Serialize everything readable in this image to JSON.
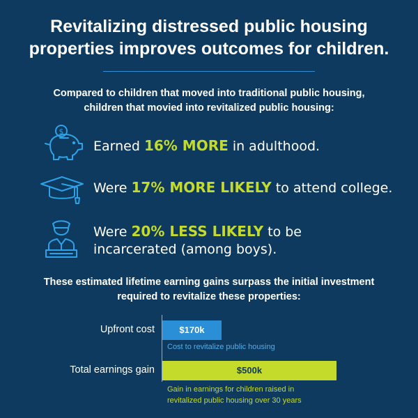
{
  "title_line1": "Revitalizing distressed public housing",
  "title_line2": "properties improves outcomes for children.",
  "intro_line1": "Compared to children that moved into traditional public housing,",
  "intro_line2": "children that movied into revitalized public housing:",
  "outcomes": [
    {
      "icon": "piggy-bank-icon",
      "pre": "Earned ",
      "highlight": "16% MORE",
      "post": " in adulthood."
    },
    {
      "icon": "graduation-cap-icon",
      "pre": "Were ",
      "highlight": "17% MORE LIKELY",
      "post": " to attend college."
    },
    {
      "icon": "police-officer-icon",
      "pre": "Were ",
      "highlight": "20% LESS LIKELY",
      "post": " to be",
      "line2": "incarcerated (among boys)."
    }
  ],
  "summary_line1": "These estimated lifetime earning gains surpass the initial investment",
  "summary_line2": "required to revitalize these properties:",
  "colors": {
    "background": "#0f3a5f",
    "accent_green": "#c5db2b",
    "accent_blue": "#2a8fd6"
  },
  "chart_data": {
    "type": "bar",
    "orientation": "horizontal",
    "categories": [
      "Upfront cost",
      "Total earnings gain"
    ],
    "values": [
      170,
      500
    ],
    "value_labels": [
      "$170k",
      "$500k"
    ],
    "unit": "thousand USD",
    "annotations": [
      "Cost to revitalize public housing",
      "Gain in earnings for children raised in revitalized public housing over 30 years"
    ],
    "note_lines": [
      [
        "Cost to revitalize public housing"
      ],
      [
        "Gain in earnings for children raised in",
        "revitalized public housing over 30 years"
      ]
    ],
    "colors": [
      "#2a8fd6",
      "#c5db2b"
    ],
    "xlim": [
      0,
      500
    ],
    "grid": false,
    "legend": false
  }
}
